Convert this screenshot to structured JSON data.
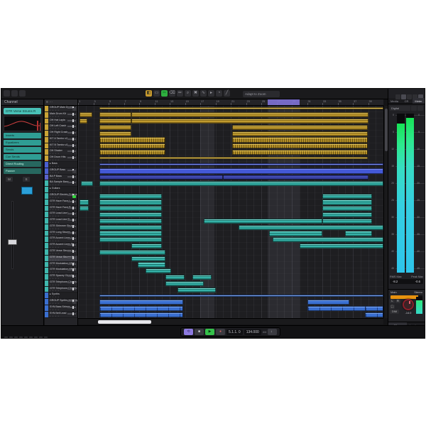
{
  "colors": {
    "accent_teal": "#3fb8ae",
    "accent_yellow": "#c9a335",
    "accent_blue": "#4a5fd0",
    "accent_synth": "#3a6fd0",
    "meter_top": "#17e356",
    "meter_bottom": "#2ec4ea",
    "volume_orange": "#e8920e",
    "locator_purple": "#8577e0"
  },
  "toolbar": {
    "grid_mode": "Adapt to Zoom",
    "left_icons": [
      "hub-icon",
      "workspace-icon",
      "setup-icon"
    ],
    "tool_icons": [
      "object-select-tool",
      "range-tool",
      "split-tool",
      "glue-tool",
      "erase-tool",
      "zoom-tool",
      "mute-tool",
      "draw-tool",
      "play-tool",
      "color-tool",
      "line-tool"
    ],
    "right_icons": [
      "setup-window-icon",
      "maximize-icon",
      "close-icon"
    ]
  },
  "inspector": {
    "title": "Channel",
    "track_label": "GTR Verse Strums R",
    "sections": [
      "Inserts",
      "Equalizers",
      "Sends",
      "Cue Sends",
      "Direct Routing",
      "Panner"
    ],
    "mute_label": "M",
    "solo_label": "S"
  },
  "track_list": {
    "header": "Tracks"
  },
  "tracks": [
    {
      "name": "GROUP Main Drums",
      "color": "y",
      "kind": "group",
      "events": [
        [
          3.8,
          41,
          "flat"
        ]
      ]
    },
    {
      "name": "Main Drum Kit",
      "color": "y",
      "events": [
        [
          1.2,
          2.9,
          "w"
        ],
        [
          3.8,
          8,
          "w"
        ],
        [
          8,
          39,
          "w"
        ]
      ]
    },
    {
      "name": "OH Hat Layla",
      "color": "y",
      "events": [
        [
          1.2,
          2.2,
          "w"
        ],
        [
          3.8,
          8,
          "w"
        ],
        [
          8,
          39,
          "w"
        ]
      ]
    },
    {
      "name": "OH Left Crash",
      "color": "y",
      "events": [
        [
          3.8,
          8,
          "w"
        ],
        [
          21.2,
          39,
          "w"
        ]
      ]
    },
    {
      "name": "OH Right Crash",
      "color": "y",
      "events": [
        [
          3.8,
          8,
          "w"
        ],
        [
          21.2,
          39,
          "w"
        ]
      ]
    },
    {
      "name": "KIT A Tambo v2",
      "color": "y",
      "events": [
        [
          3.8,
          12.4,
          "h"
        ],
        [
          21.2,
          39,
          "h"
        ]
      ]
    },
    {
      "name": "KIT B Tambo v2",
      "color": "y",
      "events": [
        [
          3.8,
          12.4,
          "h"
        ],
        [
          21.2,
          39,
          "h"
        ]
      ]
    },
    {
      "name": "OH Shaker",
      "color": "y",
      "events": [
        [
          3.8,
          12.4,
          "h"
        ],
        [
          21.2,
          39,
          "h"
        ]
      ]
    },
    {
      "name": "OH Drum Hits",
      "color": "y",
      "events": [
        [
          3.8,
          39,
          "flat"
        ]
      ]
    },
    {
      "name": "Bass",
      "color": "b",
      "kind": "folder",
      "events": [
        [
          3.8,
          41,
          "flat"
        ]
      ]
    },
    {
      "name": "GROUP Bass",
      "color": "b",
      "kind": "group",
      "events": [
        [
          3.8,
          41,
          "solid"
        ]
      ]
    },
    {
      "name": "BA P Bass",
      "color": "i",
      "events": [
        [
          3.8,
          20,
          "w"
        ],
        [
          20,
          39,
          "w"
        ]
      ]
    },
    {
      "name": "BA Sample Bass",
      "color": "t",
      "events": [
        [
          1.4,
          3,
          "w"
        ],
        [
          3.8,
          41,
          "w"
        ]
      ]
    },
    {
      "name": "Guitars",
      "color": "t",
      "kind": "folder",
      "events": []
    },
    {
      "name": "GROUP Electric Guitars",
      "color": "t",
      "kind": "group",
      "active_e": true,
      "events": [
        [
          3.8,
          12,
          "w"
        ],
        [
          33,
          39.5,
          "w"
        ]
      ]
    },
    {
      "name": "GTR Haze Face L",
      "color": "t",
      "events": [
        [
          1.2,
          2.4,
          "w"
        ],
        [
          3.8,
          12,
          "w"
        ],
        [
          33,
          39.5,
          "w"
        ]
      ]
    },
    {
      "name": "GTR Haze Face R",
      "color": "t",
      "events": [
        [
          1.2,
          2.4,
          "w"
        ],
        [
          3.8,
          12,
          "w"
        ],
        [
          33,
          39.5,
          "w"
        ]
      ]
    },
    {
      "name": "GTR Lead Line L",
      "color": "t",
      "events": [
        [
          3.8,
          12,
          "w"
        ],
        [
          33,
          39.5,
          "w"
        ]
      ]
    },
    {
      "name": "GTR Lead Line R",
      "color": "t",
      "events": [
        [
          3.8,
          12,
          "w"
        ],
        [
          17.5,
          33,
          "w"
        ],
        [
          33,
          39.5,
          "w"
        ]
      ]
    },
    {
      "name": "GTR Shimmer Strums",
      "color": "t",
      "events": [
        [
          3.8,
          12,
          "w"
        ],
        [
          22,
          41,
          "w"
        ]
      ]
    },
    {
      "name": "GTR Long Strums",
      "color": "t",
      "events": [
        [
          3.8,
          12,
          "w"
        ],
        [
          26,
          33,
          "w"
        ],
        [
          36,
          39.5,
          "w"
        ]
      ]
    },
    {
      "name": "GTR Accent Lines L",
      "color": "t",
      "events": [
        [
          3.8,
          12,
          "w"
        ],
        [
          26.5,
          41,
          "w"
        ]
      ]
    },
    {
      "name": "GTR Accent Lines R",
      "color": "t",
      "events": [
        [
          8,
          12,
          "w"
        ],
        [
          30,
          41,
          "w"
        ]
      ]
    },
    {
      "name": "GTR Verse Strums L",
      "color": "t",
      "events": [
        [
          3.8,
          12.4,
          "w"
        ]
      ]
    },
    {
      "name": "GTR Verse Strums R",
      "color": "t",
      "selected": true,
      "events": [
        [
          8,
          12.4,
          "w"
        ]
      ]
    },
    {
      "name": "GTR Modulation Hits L",
      "color": "t",
      "events": [
        [
          8.8,
          12.4,
          "w"
        ]
      ]
    },
    {
      "name": "GTR Modulation Hits R",
      "color": "t",
      "events": [
        [
          9.8,
          13.2,
          "w"
        ]
      ]
    },
    {
      "name": "GTR Spacey Chords",
      "color": "t",
      "events": [
        [
          12.4,
          15,
          "w"
        ],
        [
          16,
          18.5,
          "w"
        ]
      ]
    },
    {
      "name": "GTR Telephone Chords L",
      "color": "t",
      "events": [
        [
          12.4,
          17.5,
          "w"
        ]
      ]
    },
    {
      "name": "GTR Telephone Chords R",
      "color": "t",
      "events": [
        [
          14,
          19,
          "w"
        ]
      ]
    },
    {
      "name": "Synths",
      "color": "s",
      "kind": "folder",
      "events": [
        [
          3.8,
          41,
          "flat"
        ]
      ]
    },
    {
      "name": "GROUP Synths and Keys",
      "color": "s",
      "kind": "group",
      "events": [
        [
          3.8,
          14.8,
          "solid"
        ],
        [
          31,
          36.5,
          "solid"
        ]
      ]
    },
    {
      "name": "SYN Bass Strings",
      "color": "s",
      "events": [
        [
          3.8,
          14.8,
          "loop"
        ],
        [
          31,
          39,
          "loop"
        ],
        [
          38.6,
          41,
          "loop"
        ]
      ]
    },
    {
      "name": "SYN Bell Lead",
      "color": "s",
      "events": [
        [
          3.8,
          14.8,
          "loop"
        ],
        [
          38.6,
          41,
          "loop"
        ]
      ]
    }
  ],
  "ruler": {
    "bar_count": 40,
    "bar_labels": [
      1,
      3,
      5,
      7,
      9,
      11,
      13,
      15,
      17,
      19,
      21,
      23,
      25,
      27,
      29,
      31,
      33,
      35,
      37,
      39,
      41
    ],
    "locators": {
      "from": 25.8,
      "to": 30
    }
  },
  "arrange": {
    "highlight_bands": [
      {
        "from": 17,
        "to": 18.9
      },
      {
        "from": 25.8,
        "to": 30
      }
    ]
  },
  "right_zone": {
    "tabs": [
      "Media",
      "CR",
      "Meter"
    ],
    "active_tab": "Meter",
    "meter_mode": "Digital",
    "scale_labels": [
      0,
      5,
      10,
      15,
      20,
      25,
      30,
      35,
      40,
      45
    ],
    "rms_max_label": "RMS Max",
    "peak_max_label": "Peak Max",
    "rms_max": "-8.2",
    "peak_max": "-0.6",
    "main_label": "Main",
    "main_mode": "Stereo",
    "left_label": "L",
    "right_label": "R",
    "dim_label": "DIM",
    "knob_value": "-14.0",
    "bottom_tabs": [
      "Mixer",
      "Loudness"
    ]
  },
  "transport": {
    "position": "5.1.1. 0",
    "tempo": "134.000",
    "signature": "4/4"
  }
}
